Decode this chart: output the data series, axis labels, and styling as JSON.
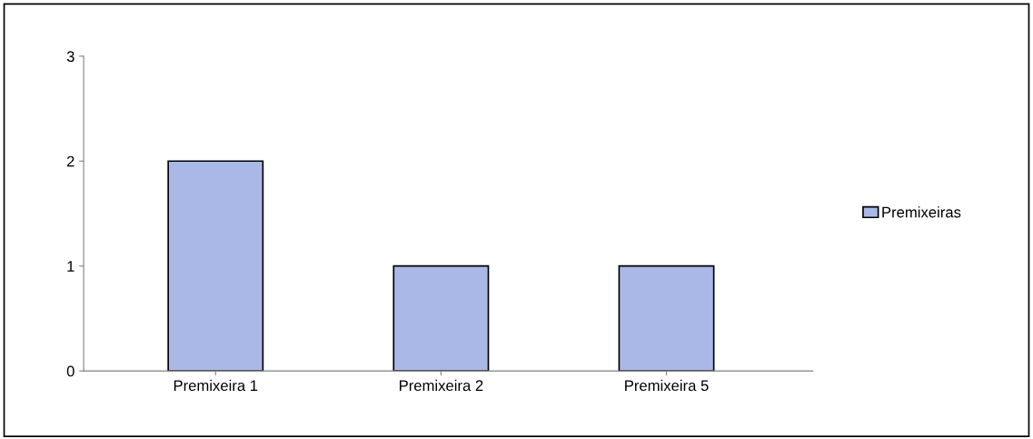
{
  "chart_data": {
    "type": "bar",
    "categories": [
      "Premixeira 1",
      "Premixeira 2",
      "Premixeira 5"
    ],
    "series": [
      {
        "name": "Premixeiras",
        "color": "#a9b8e6",
        "values": [
          2,
          1,
          1
        ]
      }
    ],
    "ylim": [
      0,
      3
    ],
    "yticks": [
      0,
      1,
      2,
      3
    ],
    "grid": false,
    "legend": "right"
  }
}
